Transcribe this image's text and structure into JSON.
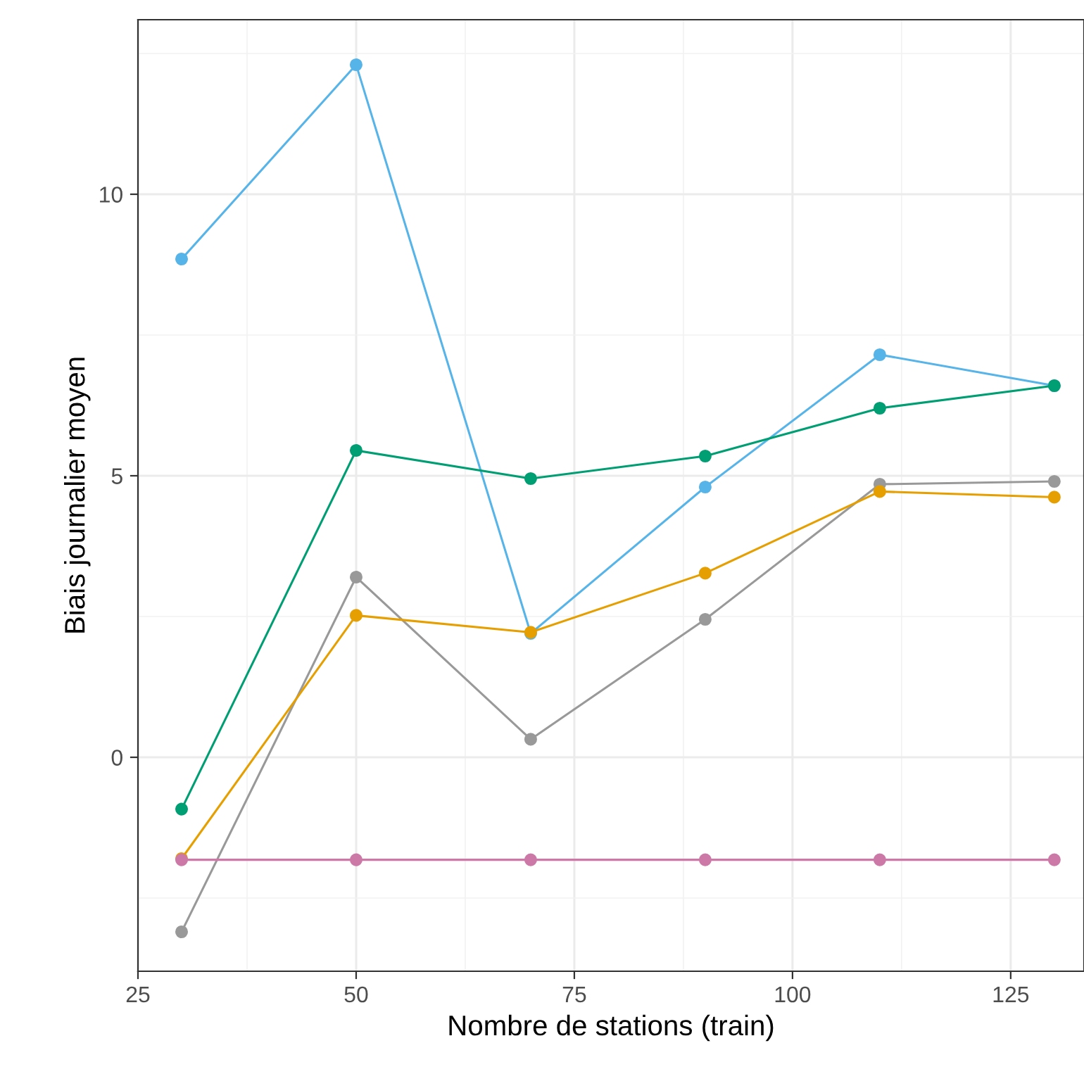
{
  "chart_data": {
    "type": "line",
    "xlabel": "Nombre de stations (train)",
    "ylabel": "Biais journalier moyen",
    "x": [
      30,
      50,
      70,
      90,
      110,
      130
    ],
    "series": [
      {
        "color": "#56b4e9",
        "values": [
          8.85,
          12.3,
          2.2,
          4.8,
          7.15,
          6.6
        ]
      },
      {
        "color": "#009e73",
        "values": [
          -0.92,
          5.45,
          4.95,
          5.35,
          6.2,
          6.6
        ]
      },
      {
        "color": "#999999",
        "values": [
          -3.1,
          3.2,
          0.32,
          2.45,
          4.85,
          4.9
        ]
      },
      {
        "color": "#e69f00",
        "values": [
          -1.8,
          2.52,
          2.22,
          3.27,
          4.72,
          4.62
        ]
      },
      {
        "color": "#cc79a7",
        "values": [
          -1.82,
          -1.82,
          -1.82,
          -1.82,
          -1.82,
          -1.82
        ]
      }
    ],
    "xlim": [
      25,
      133.4
    ],
    "ylim": [
      -3.8,
      13.1
    ],
    "xticks": [
      25,
      50,
      75,
      100,
      125
    ],
    "yticks": [
      0,
      5,
      10
    ],
    "grid": true,
    "marker": "circle",
    "line_style": "solid"
  }
}
